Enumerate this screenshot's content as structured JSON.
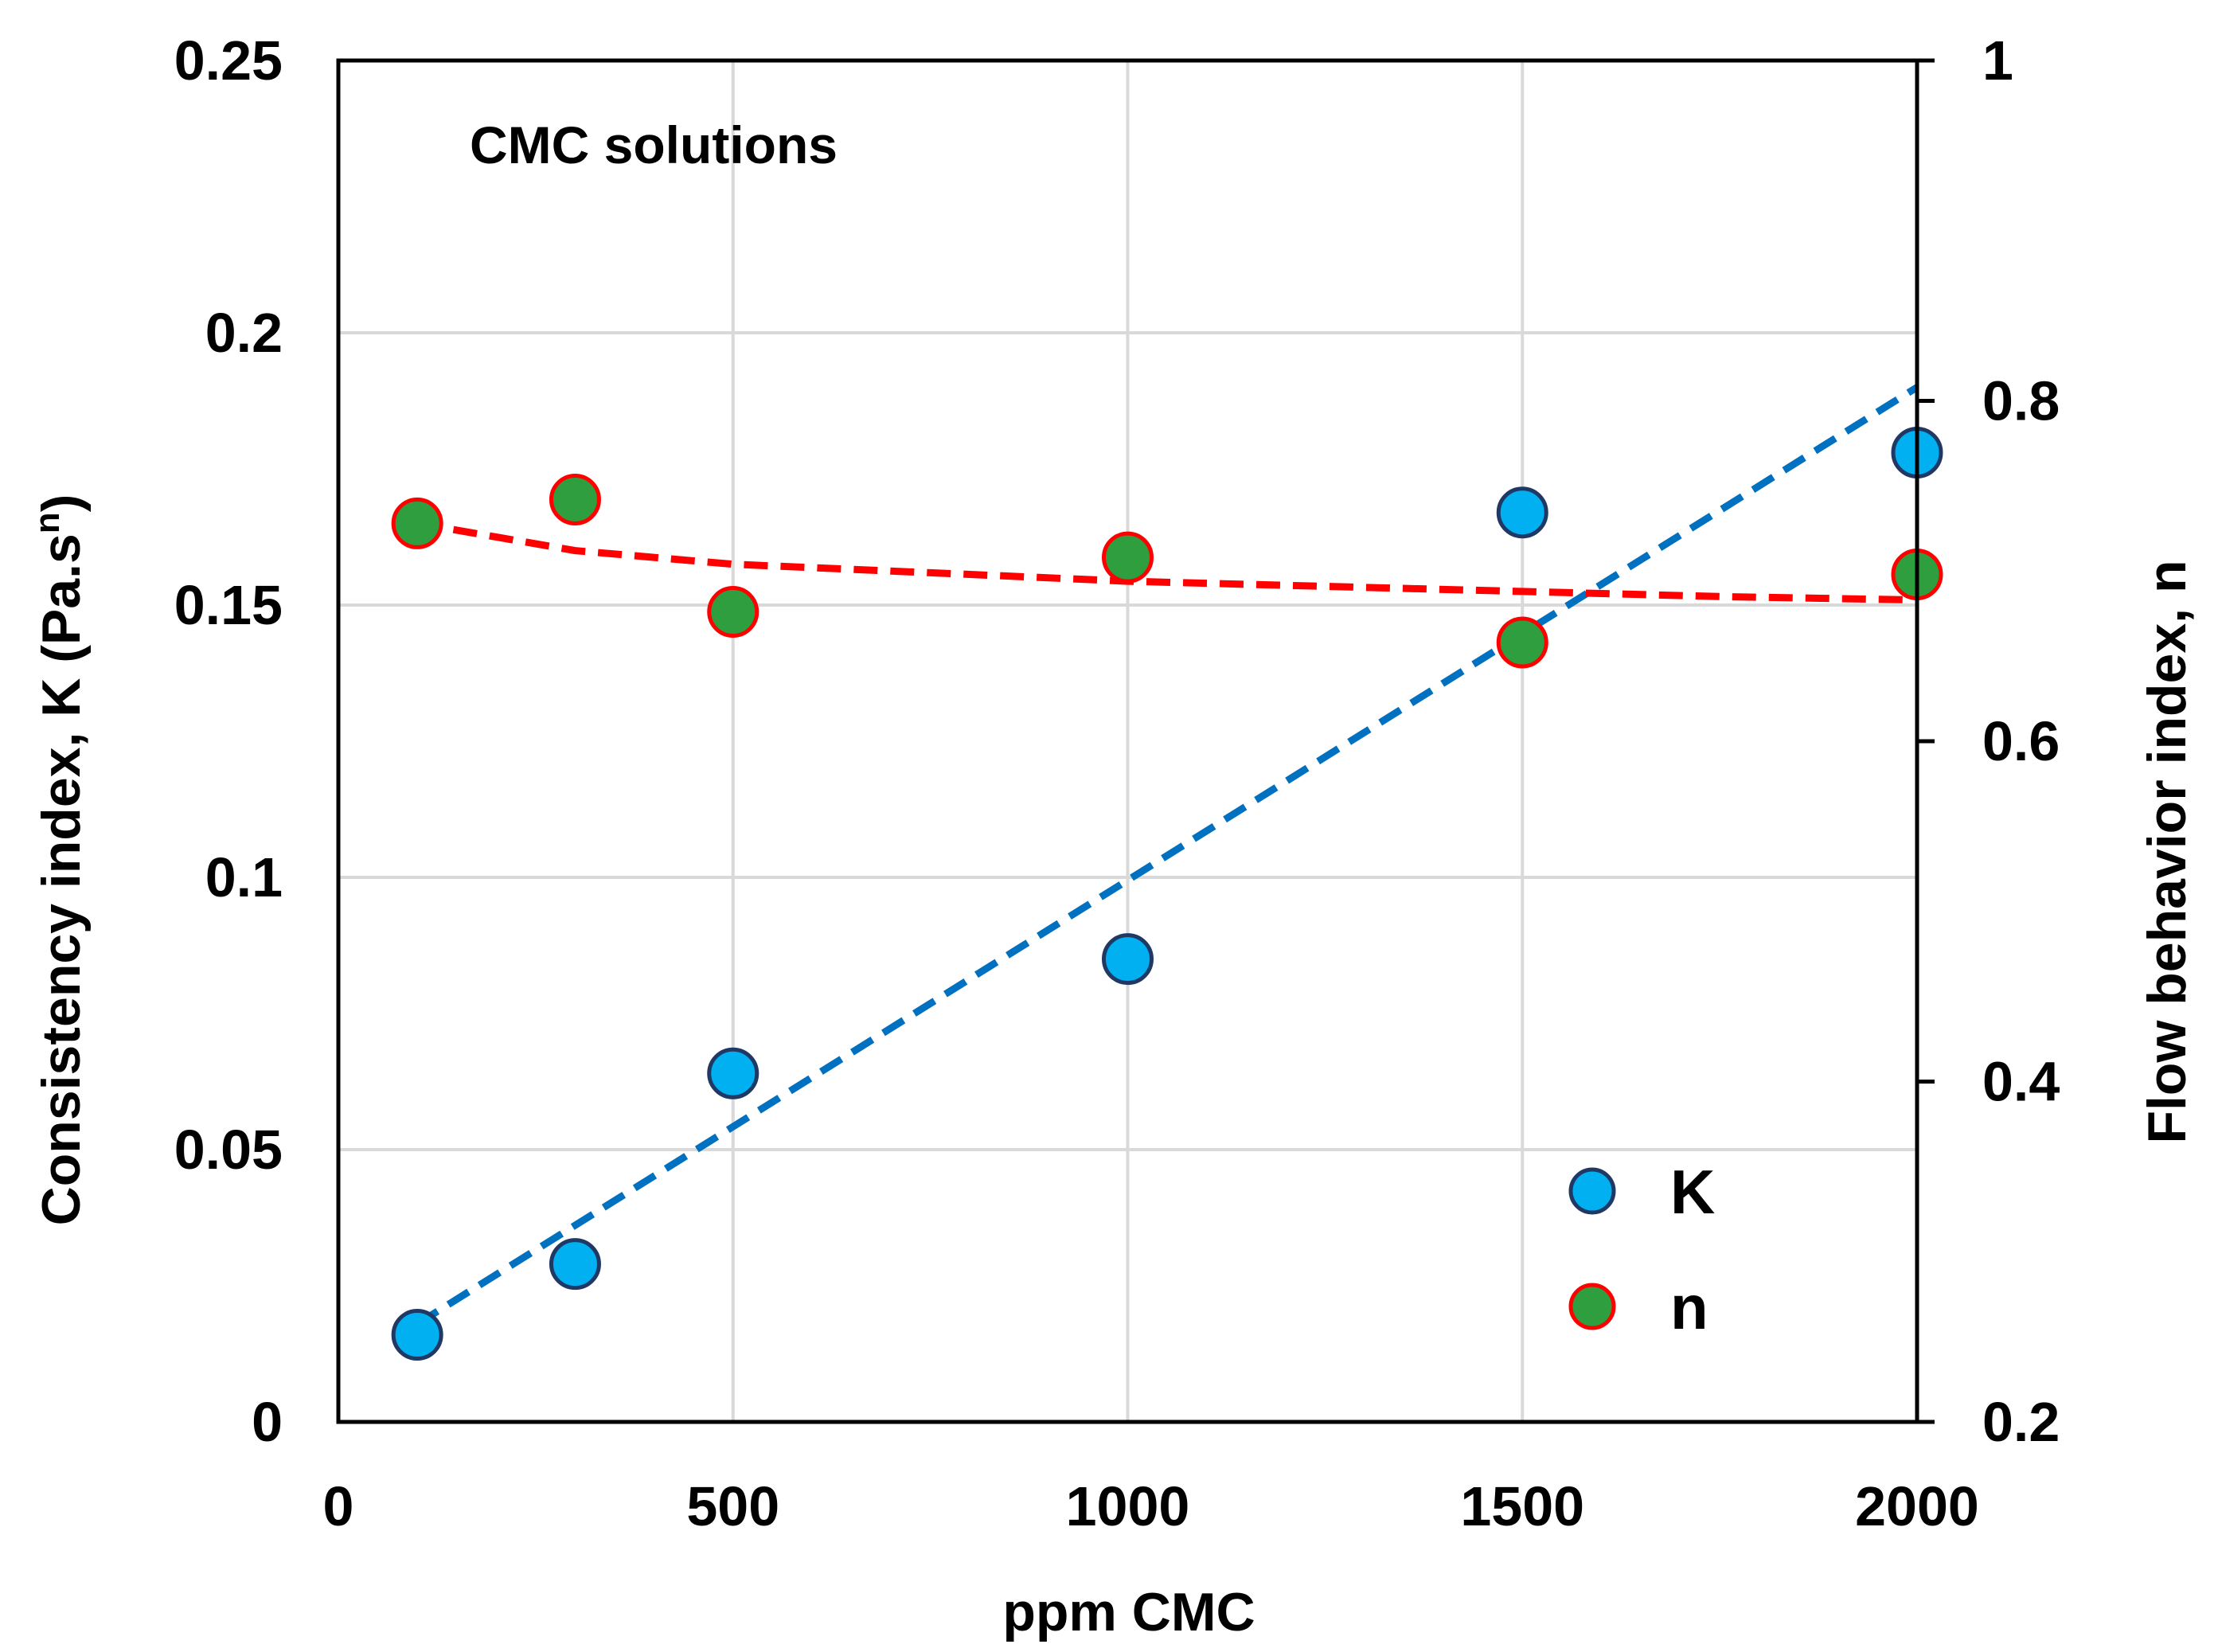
{
  "chart_data": {
    "type": "scatter",
    "annotation": "CMC solutions",
    "xlabel": "ppm CMC",
    "ylabel_left_main": "Consistency index, K (Pa.s",
    "ylabel_left_sup": "n",
    "ylabel_left_end": ")",
    "ylabel_right": "Flow behavior index, n",
    "xlim": [
      0,
      2000
    ],
    "ylim_left": [
      0,
      0.25
    ],
    "ylim_right": [
      0.2,
      1.0
    ],
    "x_ticks": [
      "0",
      "500",
      "1000",
      "1500",
      "2000"
    ],
    "x_tick_values": [
      0,
      500,
      1000,
      1500,
      2000
    ],
    "y_left_ticks": [
      "0",
      "0.05",
      "0.1",
      "0.15",
      "0.2",
      "0.25"
    ],
    "y_left_tick_values": [
      0,
      0.05,
      0.1,
      0.15,
      0.2,
      0.25
    ],
    "y_right_ticks": [
      "0.2",
      "0.4",
      "0.6",
      "0.8",
      "1"
    ],
    "y_right_tick_values": [
      0.2,
      0.4,
      0.6,
      0.8,
      1.0
    ],
    "series": [
      {
        "name": "K",
        "axis": "left",
        "marker_fill": "#00b0f0",
        "marker_edge": "#1f3864",
        "x": [
          100,
          300,
          500,
          1000,
          1500,
          2000
        ],
        "y": [
          0.016,
          0.029,
          0.064,
          0.085,
          0.167,
          0.178
        ],
        "trend": {
          "type": "linear",
          "color": "#0070c0",
          "x_start": 100,
          "x_end": 2000,
          "y_start": 0.018,
          "y_end": 0.19
        }
      },
      {
        "name": "n",
        "axis": "right",
        "marker_fill": "#2e9e3f",
        "marker_edge": "#ff0000",
        "x": [
          100,
          300,
          500,
          1000,
          1500,
          2000
        ],
        "y": [
          0.728,
          0.742,
          0.676,
          0.708,
          0.658,
          0.698
        ],
        "trend": {
          "type": "power",
          "color": "#ff0000",
          "x": [
            100,
            300,
            500,
            750,
            1000,
            1250,
            1500,
            1750,
            2000
          ],
          "y": [
            0.728,
            0.712,
            0.704,
            0.699,
            0.694,
            0.691,
            0.688,
            0.685,
            0.683
          ]
        }
      }
    ],
    "legend": [
      {
        "label": "K",
        "marker_fill": "#00b0f0",
        "marker_edge": "#1f3864"
      },
      {
        "label": "n",
        "marker_fill": "#2e9e3f",
        "marker_edge": "#ff0000"
      }
    ],
    "legend_position": "bottom-right",
    "grid": true
  }
}
